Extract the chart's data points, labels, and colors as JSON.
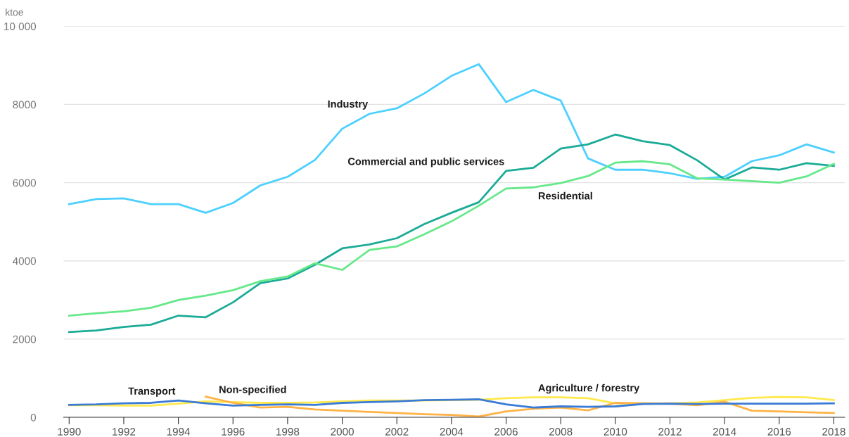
{
  "chart_data": {
    "type": "line",
    "ylabel": "ktoe",
    "x": [
      1990,
      1991,
      1992,
      1993,
      1994,
      1995,
      1996,
      1997,
      1998,
      1999,
      2000,
      2001,
      2002,
      2003,
      2004,
      2005,
      2006,
      2007,
      2008,
      2009,
      2010,
      2011,
      2012,
      2013,
      2014,
      2015,
      2016,
      2017,
      2018
    ],
    "series": [
      {
        "name": "Industry",
        "color": "#4dd0ff",
        "values": [
          5450,
          5580,
          5600,
          5450,
          5450,
          5230,
          5480,
          5930,
          6150,
          6580,
          7380,
          7760,
          7900,
          8280,
          8730,
          9030,
          8060,
          8370,
          8100,
          6620,
          6330,
          6330,
          6240,
          6100,
          6150,
          6550,
          6700,
          6980,
          6770
        ]
      },
      {
        "name": "Commercial and public services",
        "color": "#1aab97",
        "values": [
          2180,
          2220,
          2310,
          2370,
          2600,
          2560,
          2940,
          3430,
          3550,
          3900,
          4320,
          4420,
          4580,
          4940,
          5230,
          5500,
          6300,
          6380,
          6870,
          6980,
          7230,
          7060,
          6960,
          6570,
          6080,
          6390,
          6330,
          6500,
          6430
        ]
      },
      {
        "name": "Residential",
        "color": "#66e88a",
        "values": [
          2600,
          2660,
          2710,
          2800,
          3000,
          3110,
          3250,
          3480,
          3600,
          3940,
          3770,
          4280,
          4370,
          4680,
          5010,
          5410,
          5850,
          5880,
          5990,
          6170,
          6510,
          6550,
          6470,
          6110,
          6080,
          6040,
          6000,
          6160,
          6480
        ]
      },
      {
        "name": "Agriculture / forestry",
        "color": "#ffe94d",
        "values": [
          310,
          310,
          300,
          300,
          350,
          410,
          390,
          370,
          370,
          380,
          410,
          430,
          430,
          430,
          440,
          450,
          490,
          510,
          510,
          490,
          360,
          360,
          360,
          380,
          440,
          500,
          520,
          510,
          440
        ]
      },
      {
        "name": "Non-specified",
        "color": "#ffb347",
        "values": [
          null,
          null,
          null,
          null,
          null,
          530,
          370,
          250,
          270,
          200,
          170,
          140,
          110,
          80,
          60,
          20,
          150,
          220,
          250,
          180,
          370,
          360,
          350,
          310,
          400,
          170,
          150,
          130,
          110
        ]
      },
      {
        "name": "Transport",
        "color": "#3a7bd5",
        "values": [
          320,
          330,
          360,
          370,
          430,
          360,
          300,
          320,
          330,
          320,
          370,
          390,
          410,
          440,
          450,
          460,
          330,
          250,
          280,
          270,
          280,
          340,
          350,
          340,
          350,
          350,
          350,
          350,
          360
        ]
      }
    ],
    "xlim": [
      1989.8,
      2018.4
    ],
    "xticks": [
      1990,
      1992,
      1994,
      1996,
      1998,
      2000,
      2002,
      2004,
      2006,
      2008,
      2010,
      2012,
      2014,
      2016,
      2018
    ],
    "ylim": [
      0,
      10000
    ],
    "yticks": [
      0,
      2000,
      4000,
      6000,
      8000,
      {
        "value": 10000,
        "label": "10 000"
      }
    ],
    "grid": "y",
    "legend": false,
    "marker": "none",
    "line_style": "solid"
  }
}
